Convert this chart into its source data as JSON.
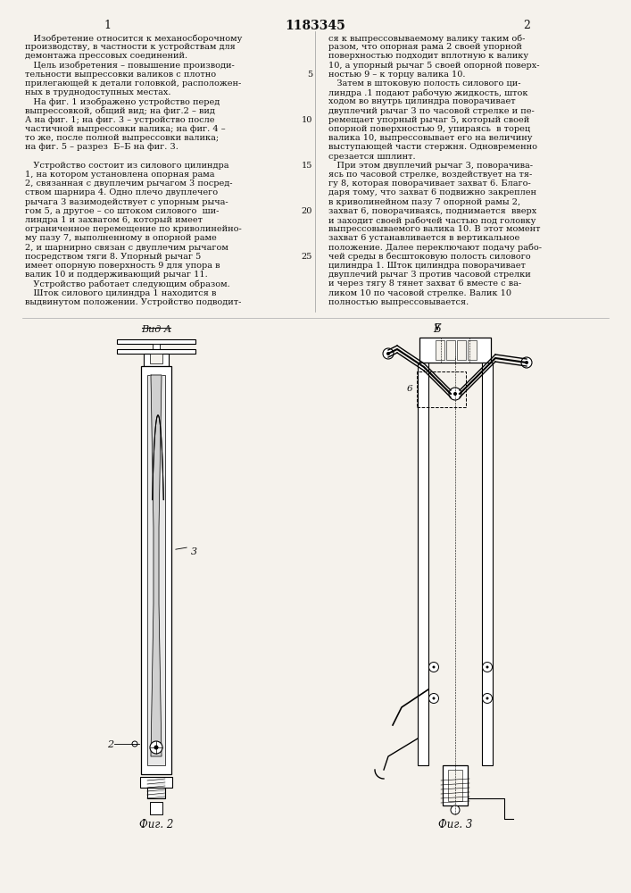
{
  "page_number_center": "1183345",
  "col1_header": "1",
  "col2_header": "2",
  "background_color": "#f5f2ec",
  "text_color": "#111111",
  "font_size_body": 7.0,
  "font_size_header": 8.5,
  "col1_text": [
    "   Изобретение относится к механосборочному",
    "производству, в частности к устройствам для",
    "демонтажа прессовых соединений.",
    "   Цель изобретения – повышение производи-",
    "тельности выпрессовки валиков с плотно",
    "прилегающей к детали головкой, расположен-",
    "ных в труднодоступных местах.",
    "   На фиг. 1 изображено устройство перед",
    "выпрессовкой, общий вид; на фиг.2 – вид",
    "А на фиг. 1; на фиг. 3 – устройство после",
    "частичной выпрессовки валика; на фиг. 4 –",
    "то же, после полной выпрессовки валика;",
    "на фиг. 5 – разрез  Б–Б на фиг. 3.",
    "   ",
    "   Устройство состоит из силового цилиндра",
    "1, на котором установлена опорная рама",
    "2, связанная с двуплечим рычагом 3 посред-",
    "ством шарнира 4. Одно плечо двуплечего",
    "рычага 3 вазимодействует с упорным рыча-",
    "гом 5, а другое – со штоком силового  ши-",
    "линдра 1 и захватом 6, который имеет",
    "ограниченное перемещение по криволинейно-",
    "му пазу 7, выполненному в опорной раме",
    "2, и шарнирно связан с двуплечим рычагом",
    "посредством тяги 8. Упорный рычаг 5",
    "имеет опорную поверхность 9 для упора в",
    "валик 10 и поддерживающий рычаг 11.",
    "   Устройство работает следующим образом.",
    "   Шток силового цилиндра 1 находится в",
    "выдвинутом положении. Устройство подводит-"
  ],
  "col2_text": [
    "ся к выпрессовываемому валику таким об-",
    "разом, что опорная рама 2 своей упорной",
    "поверхностью подходит вплотную к валику",
    "10, а упорный рычаг 5 своей опорной поверх-",
    "ностью 9 – к торцу валика 10.",
    "   Затем в штоковую полость силового ци-",
    "линдра .1 подают рабочую жидкость, шток",
    "ходом во внутрь цилиндра поворачивает",
    "двуплечий рычаг 3 по часовой стрелке и пе-",
    "ремещает упорный рычаг 5, который своей",
    "опорной поверхностью 9, упираясь  в торец",
    "валика 10, выпрессовывает его на величину",
    "выступающей части стержня. Одновременно",
    "срезается шплинт.",
    "   При этом двуплечий рычаг 3, поворачива-",
    "ясь по часовой стрелке, воздействует на тя-",
    "гу 8, которая поворачивает захват 6. Благо-",
    "даря тому, что захват 6 подвижно закреплен",
    "в криволинейном пазу 7 опорной рамы 2,",
    "захват 6, поворачиваясь, поднимается  вверх",
    "и заходит своей рабочей частью под головку",
    "выпрессовываемого валика 10. В этот момент",
    "захват 6 устанавливается в вертикальное",
    "положение. Далее переключают подачу рабо-",
    "чей среды в бесштоковую полость силового",
    "цилиндра 1. Шток цилиндра поворачивает",
    "двуплечий рычаг 3 против часовой стрелки",
    "и через тягу 8 тянет захват 6 вместе с ва-",
    "ликом 10 по часовой стрелке. Валик 10",
    "полностью выпрессовывается."
  ],
  "line_numbers_col1": {
    "3": 5,
    "8": 10,
    "13": 15,
    "18": 20,
    "23": 25
  },
  "line_numbers_col2": {
    "3": 5,
    "8": 10,
    "13": 15,
    "18": 20,
    "23": 25
  },
  "fig2_label": "Фиг. 2",
  "fig3_label": "Фиг. 3",
  "vid_a_label": "Вид А",
  "b_label": "Б"
}
